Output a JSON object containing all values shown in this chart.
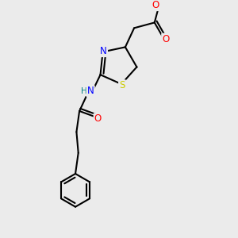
{
  "bg_color": "#ebebeb",
  "bond_color": "#000000",
  "atom_colors": {
    "N": "#0000ff",
    "O": "#ff0000",
    "S": "#cccc00",
    "H": "#008080",
    "C": "#000000"
  },
  "line_width": 1.5,
  "font_size": 8.5
}
